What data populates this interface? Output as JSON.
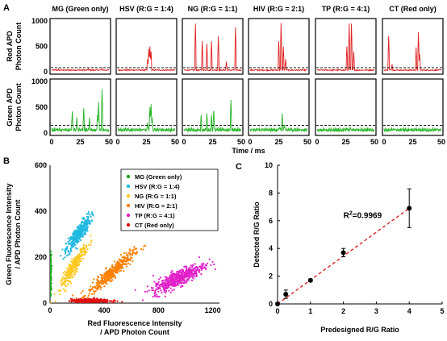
{
  "chart_data": [
    {
      "panel_label": "A",
      "type": "line",
      "panels": [
        "MG (Green only)",
        "HSV (R:G = 1:4)",
        "NG (R:G = 1:1)",
        "HIV (R:G = 2:1)",
        "TP (R:G = 4:1)",
        "CT (Red only)"
      ],
      "rows": [
        {
          "label_lines": [
            "Red  APD",
            "Photon Count"
          ],
          "color": "#e02020",
          "ylim": [
            0,
            1000
          ],
          "yticks": [
            0,
            500,
            1000
          ],
          "threshold": 80,
          "spikes": [
            [
              [
                6,
                60
              ],
              [
                32,
                55
              ],
              [
                44,
                70
              ]
            ],
            [
              [
                26,
                250
              ],
              [
                27,
                450
              ],
              [
                28,
                500
              ],
              [
                29,
                400
              ]
            ],
            [
              [
                10,
                950
              ],
              [
                16,
                600
              ],
              [
                20,
                550
              ],
              [
                24,
                600
              ],
              [
                30,
                700
              ],
              [
                37,
                200
              ],
              [
                45,
                880
              ]
            ],
            [
              [
                25,
                600
              ],
              [
                27,
                960
              ],
              [
                29,
                500
              ],
              [
                31,
                250
              ]
            ],
            [
              [
                26,
                500
              ],
              [
                28,
                950
              ],
              [
                30,
                950
              ],
              [
                32,
                400
              ]
            ],
            [
              [
                4,
                700
              ],
              [
                7,
                150
              ],
              [
                28,
                480
              ],
              [
                30,
                780
              ],
              [
                31,
                350
              ]
            ]
          ]
        },
        {
          "label_lines": [
            "Green  APD",
            "Photon Count"
          ],
          "color": "#22b422",
          "ylim": [
            0,
            1000
          ],
          "yticks": [
            0,
            500,
            1000
          ],
          "threshold": 150,
          "spikes": [
            [
              [
                18,
                420
              ],
              [
                22,
                300
              ],
              [
                28,
                480
              ],
              [
                33,
                300
              ],
              [
                40,
                350
              ],
              [
                41,
                600
              ],
              [
                44,
                850
              ]
            ],
            [
              [
                26,
                200
              ],
              [
                28,
                500
              ],
              [
                29,
                560
              ],
              [
                30,
                300
              ],
              [
                32,
                100
              ]
            ],
            [
              [
                15,
                350
              ],
              [
                20,
                380
              ],
              [
                24,
                350
              ],
              [
                26,
                430
              ],
              [
                41,
                640
              ]
            ],
            [
              [
                26,
                120
              ],
              [
                28,
                380
              ],
              [
                30,
                160
              ]
            ],
            [
              [
                26,
                80
              ],
              [
                29,
                120
              ]
            ],
            [
              [
                10,
                60
              ],
              [
                30,
                70
              ]
            ]
          ]
        }
      ],
      "xlim": [
        0,
        50
      ],
      "xticks": [
        0,
        25,
        50
      ],
      "xlabel": "Time / ms"
    },
    {
      "panel_label": "B",
      "type": "scatter",
      "xlabel_lines": [
        "Red Fluorescence Intensity",
        "/ APD Photon Count"
      ],
      "ylabel_lines": [
        "Green Fluorescence Intensity",
        "/ APD Photon Count"
      ],
      "xlim": [
        0,
        1250
      ],
      "ylim": [
        0,
        600
      ],
      "xticks": [
        0,
        400,
        800,
        1200
      ],
      "yticks": [
        0,
        200,
        400,
        600
      ],
      "legend_position": "top-right",
      "series": [
        {
          "name": "MG (Green only)",
          "color": "#1ea81e",
          "center": [
            5,
            130
          ],
          "spread": [
            5,
            80
          ],
          "n": 120,
          "slope": 0
        },
        {
          "name": "HSV (R:G = 1:4)",
          "color": "#1fb8e0",
          "center": [
            210,
            300
          ],
          "spread": [
            90,
            40
          ],
          "n": 350,
          "slope": 0.75
        },
        {
          "name": "NG (R:G = 1:1)",
          "color": "#ffc81e",
          "center": [
            175,
            160
          ],
          "spread": [
            95,
            35
          ],
          "n": 300,
          "slope": 0.9
        },
        {
          "name": "HIV (R:G = 2:1)",
          "color": "#ff7f00",
          "center": [
            450,
            130
          ],
          "spread": [
            170,
            30
          ],
          "n": 420,
          "slope": 0.5
        },
        {
          "name": "TP (R:G = 4:1)",
          "color": "#e020c8",
          "center": [
            950,
            110
          ],
          "spread": [
            190,
            35
          ],
          "n": 500,
          "slope": 0.28
        },
        {
          "name": "CT (Red only)",
          "color": "#e01010",
          "center": [
            300,
            10
          ],
          "spread": [
            140,
            8
          ],
          "n": 400,
          "slope": 0
        }
      ]
    },
    {
      "panel_label": "C",
      "type": "scatter",
      "xlabel": "Predesigned R/G Ratio",
      "ylabel": "Detected R/G Ratio",
      "xlim": [
        0,
        5
      ],
      "ylim": [
        0,
        10
      ],
      "xticks": [
        0,
        1,
        2,
        3,
        4,
        5
      ],
      "yticks": [
        0,
        2,
        4,
        6,
        8,
        10
      ],
      "points": [
        {
          "x": 0,
          "y": 0,
          "err": 0
        },
        {
          "x": 0.25,
          "y": 0.7,
          "err": 0.3
        },
        {
          "x": 1,
          "y": 1.7,
          "err": 0.1
        },
        {
          "x": 2,
          "y": 3.7,
          "err": 0.3
        },
        {
          "x": 4,
          "y": 6.9,
          "err": 1.4
        }
      ],
      "fit_line": {
        "x": [
          0,
          4
        ],
        "y": [
          0,
          6.9
        ]
      },
      "r_squared_label": "R",
      "r_squared_sup": "2",
      "r_squared_value": "=0.9969"
    }
  ]
}
